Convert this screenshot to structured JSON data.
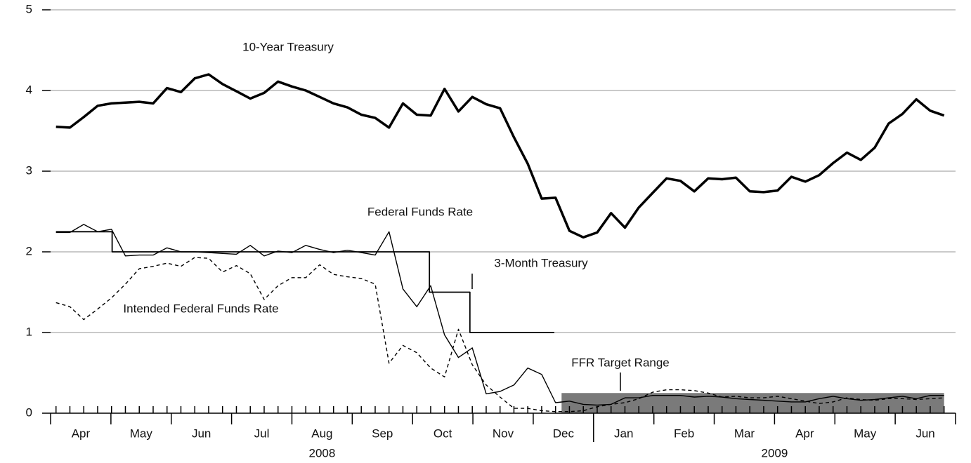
{
  "chart_data": {
    "type": "line",
    "x": [
      0.09,
      0.32,
      0.55,
      0.78,
      1.01,
      1.24,
      1.47,
      1.7,
      1.93,
      2.16,
      2.39,
      2.62,
      2.85,
      3.08,
      3.31,
      3.54,
      3.77,
      4.0,
      4.23,
      4.46,
      4.69,
      4.92,
      5.15,
      5.38,
      5.61,
      5.84,
      6.07,
      6.3,
      6.53,
      6.76,
      6.99,
      7.22,
      7.45,
      7.68,
      7.91,
      8.14,
      8.37,
      8.6,
      8.83,
      9.06,
      9.29,
      9.52,
      9.75,
      9.98,
      10.21,
      10.44,
      10.67,
      10.9,
      11.13,
      11.36,
      11.59,
      11.82,
      12.05,
      12.28,
      12.51,
      12.74,
      12.97,
      13.2,
      13.43,
      13.66,
      13.89,
      14.12,
      14.35,
      14.58,
      14.81
    ],
    "xlim": [
      0,
      15
    ],
    "month_bounds": [
      0,
      1,
      2,
      3,
      4,
      5,
      6,
      7,
      8,
      9,
      10,
      11,
      12,
      13,
      14,
      15
    ],
    "months": [
      "Apr",
      "May",
      "Jun",
      "Jul",
      "Aug",
      "Sep",
      "Oct",
      "Nov",
      "Dec",
      "Jan",
      "Feb",
      "Mar",
      "Apr",
      "May",
      "Jun"
    ],
    "years": [
      "2008",
      "2009"
    ],
    "ylim": [
      0,
      5
    ],
    "yticks": [
      0,
      1,
      2,
      3,
      4,
      5
    ],
    "grid": true,
    "series": [
      {
        "name": "10-Year Treasury",
        "color": "#000000",
        "style": "thick",
        "values": [
          3.55,
          3.54,
          3.67,
          3.81,
          3.84,
          3.85,
          3.86,
          3.84,
          4.03,
          3.98,
          4.15,
          4.2,
          4.08,
          3.99,
          3.9,
          3.97,
          4.11,
          4.05,
          4.0,
          3.92,
          3.84,
          3.79,
          3.7,
          3.66,
          3.54,
          3.84,
          3.7,
          3.69,
          4.02,
          3.74,
          3.92,
          3.83,
          3.78,
          3.42,
          3.09,
          2.66,
          2.67,
          2.26,
          2.18,
          2.24,
          2.48,
          2.3,
          2.55,
          2.73,
          2.91,
          2.88,
          2.75,
          2.91,
          2.9,
          2.92,
          2.75,
          2.74,
          2.76,
          2.93,
          2.87,
          2.95,
          3.1,
          3.23,
          3.14,
          3.29,
          3.59,
          3.71,
          3.89,
          3.75,
          3.69
        ]
      },
      {
        "name": "Federal Funds Rate",
        "color": "#000000",
        "style": "thin",
        "values": [
          2.24,
          2.24,
          2.34,
          2.25,
          2.28,
          1.95,
          1.96,
          1.96,
          2.05,
          2.0,
          2.0,
          1.99,
          1.98,
          1.97,
          2.08,
          1.95,
          2.01,
          1.99,
          2.08,
          2.03,
          1.99,
          2.02,
          1.99,
          1.96,
          2.25,
          1.54,
          1.32,
          1.58,
          0.97,
          0.69,
          0.81,
          0.24,
          0.27,
          0.35,
          0.56,
          0.48,
          0.13,
          0.15,
          0.11,
          0.1,
          0.11,
          0.19,
          0.19,
          0.22,
          0.22,
          0.22,
          0.2,
          0.21,
          0.2,
          0.18,
          0.17,
          0.16,
          0.15,
          0.14,
          0.14,
          0.18,
          0.21,
          0.18,
          0.16,
          0.17,
          0.19,
          0.21,
          0.18,
          0.22,
          0.22
        ]
      },
      {
        "name": "3-Month Treasury",
        "color": "#000000",
        "style": "dashed",
        "values": [
          1.37,
          1.32,
          1.16,
          1.29,
          1.43,
          1.6,
          1.79,
          1.82,
          1.86,
          1.82,
          1.93,
          1.92,
          1.75,
          1.83,
          1.73,
          1.41,
          1.58,
          1.68,
          1.68,
          1.84,
          1.72,
          1.69,
          1.67,
          1.6,
          0.62,
          0.84,
          0.75,
          0.56,
          0.45,
          1.04,
          0.6,
          0.35,
          0.2,
          0.06,
          0.06,
          0.03,
          0.02,
          0.02,
          0.03,
          0.08,
          0.11,
          0.13,
          0.18,
          0.26,
          0.29,
          0.29,
          0.28,
          0.25,
          0.2,
          0.21,
          0.19,
          0.19,
          0.21,
          0.18,
          0.15,
          0.12,
          0.14,
          0.19,
          0.17,
          0.16,
          0.18,
          0.18,
          0.17,
          0.18,
          0.19
        ]
      },
      {
        "name": "Intended Federal Funds Rate",
        "color": "#000000",
        "style": "step",
        "x": [
          0.09,
          1.02,
          1.02,
          6.28,
          6.28,
          6.95,
          6.95,
          8.35
        ],
        "values": [
          2.25,
          2.25,
          2.0,
          2.0,
          1.5,
          1.5,
          1.0,
          1.0
        ]
      }
    ],
    "target_range": {
      "name": "FFR Target Range",
      "color": "#7a7a7a",
      "x": [
        8.47,
        14.81
      ],
      "values": [
        0,
        0.25
      ]
    }
  }
}
